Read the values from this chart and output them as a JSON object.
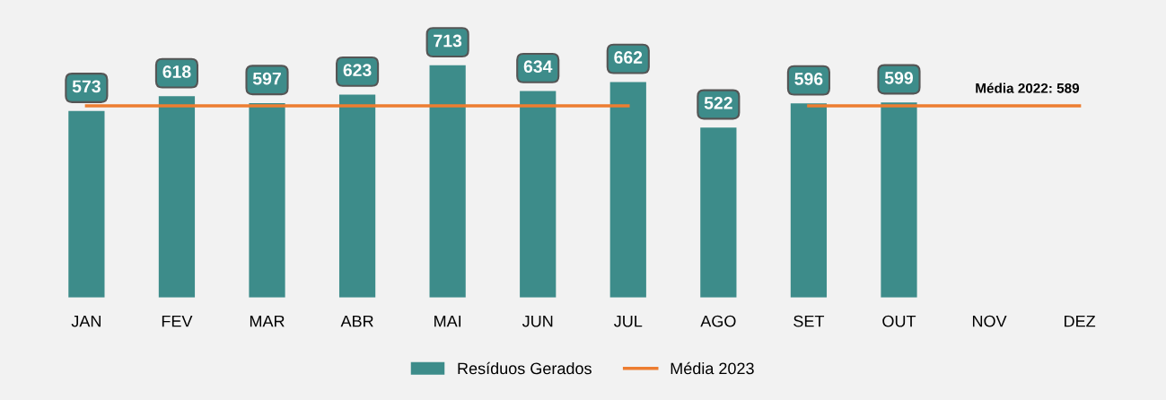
{
  "chart_data": {
    "type": "bar",
    "categories": [
      "JAN",
      "FEV",
      "MAR",
      "ABR",
      "MAI",
      "JUN",
      "JUL",
      "AGO",
      "SET",
      "OUT",
      "NOV",
      "DEZ"
    ],
    "series": [
      {
        "name": "Resíduos Gerados",
        "color": "#3d8c8a",
        "values": [
          573,
          618,
          597,
          623,
          713,
          634,
          662,
          522,
          596,
          599,
          null,
          null
        ],
        "value_labels": [
          "573",
          "618",
          "597",
          "623",
          "713",
          "634",
          "662",
          "522",
          "596",
          "599",
          null,
          null
        ]
      },
      {
        "name": "Média 2023",
        "type": "line",
        "color": "#ed7d31",
        "values": [
          589,
          589,
          589,
          589,
          589,
          589,
          589,
          null,
          589,
          589,
          589,
          589
        ]
      }
    ],
    "tick_labels": "x",
    "grid": false,
    "legend": "bottom",
    "annotations": [
      {
        "text": "Média 2022: 589",
        "x": "DEZ",
        "y": 589
      }
    ]
  }
}
